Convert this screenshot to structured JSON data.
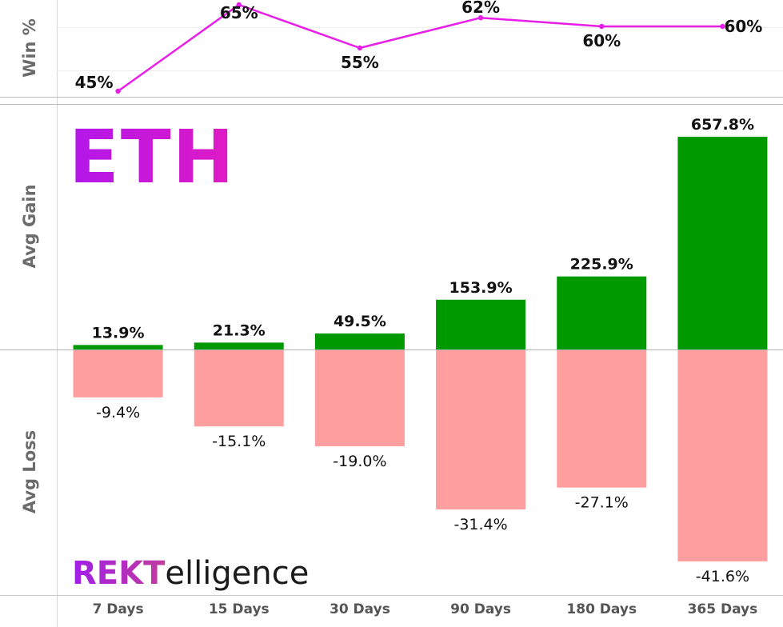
{
  "chart_data": [
    {
      "type": "line",
      "ylabel": "Win %",
      "categories": [
        "7 Days",
        "15 Days",
        "30 Days",
        "90 Days",
        "180 Days",
        "365 Days"
      ],
      "values": [
        45,
        65,
        55,
        62,
        60,
        60
      ],
      "value_labels": [
        "45%",
        "65%",
        "55%",
        "62%",
        "60%",
        "60%"
      ],
      "ylim": [
        43,
        67
      ],
      "color": "#e81ee8",
      "grid": true
    },
    {
      "type": "bar",
      "title": "ETH",
      "categories": [
        "7 Days",
        "15 Days",
        "30 Days",
        "90 Days",
        "180 Days",
        "365 Days"
      ],
      "series": [
        {
          "name": "Avg Gain",
          "values": [
            13.9,
            21.3,
            49.5,
            153.9,
            225.9,
            657.8
          ],
          "labels": [
            "13.9%",
            "21.3%",
            "49.5%",
            "153.9%",
            "225.9%",
            "657.8%"
          ],
          "color": "#009900"
        },
        {
          "name": "Avg Loss",
          "values": [
            -9.4,
            -15.1,
            -19.0,
            -31.4,
            -27.1,
            -41.6
          ],
          "labels": [
            "-9.4%",
            "-15.1%",
            "-19.0%",
            "-31.4%",
            "-27.1%",
            "-41.6%"
          ],
          "color": "#ff9e9e"
        }
      ],
      "gain_axis_label": "Avg Gain",
      "loss_axis_label": "Avg Loss"
    }
  ],
  "title_gradient": [
    "#b217ea",
    "#e01ac4"
  ],
  "brand": {
    "prefix": "REKT",
    "suffix": "elligence",
    "prefix_colors": [
      "#a21ee8",
      "#f06a2a"
    ]
  }
}
